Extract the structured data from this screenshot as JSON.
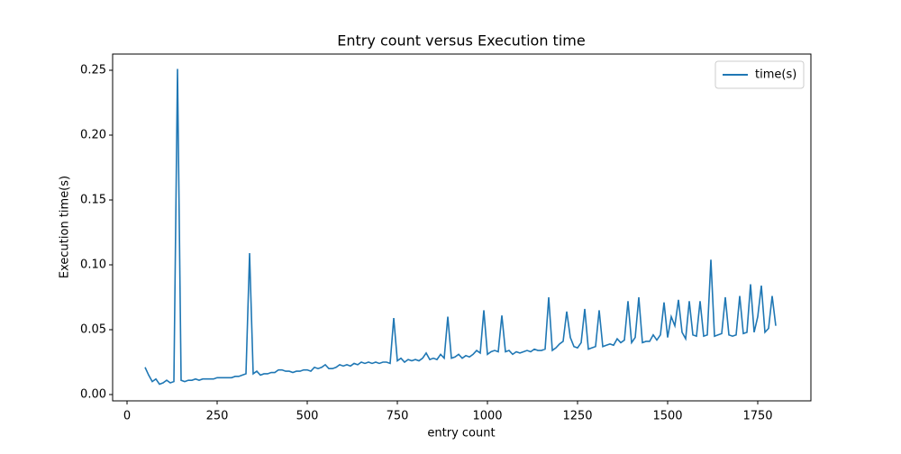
{
  "chart_data": {
    "type": "line",
    "title": "Entry count versus Execution time",
    "xlabel": "entry count",
    "ylabel": "Execution time(s)",
    "x": [
      50,
      60,
      70,
      80,
      90,
      100,
      110,
      120,
      130,
      140,
      150,
      160,
      170,
      180,
      190,
      200,
      210,
      220,
      230,
      240,
      250,
      260,
      270,
      280,
      290,
      300,
      310,
      320,
      330,
      340,
      350,
      360,
      370,
      380,
      390,
      400,
      410,
      420,
      430,
      440,
      450,
      460,
      470,
      480,
      490,
      500,
      510,
      520,
      530,
      540,
      550,
      560,
      570,
      580,
      590,
      600,
      610,
      620,
      630,
      640,
      650,
      660,
      670,
      680,
      690,
      700,
      710,
      720,
      730,
      740,
      750,
      760,
      770,
      780,
      790,
      800,
      810,
      820,
      830,
      840,
      850,
      860,
      870,
      880,
      890,
      900,
      910,
      920,
      930,
      940,
      950,
      960,
      970,
      980,
      990,
      1000,
      1010,
      1020,
      1030,
      1040,
      1050,
      1060,
      1070,
      1080,
      1090,
      1100,
      1110,
      1120,
      1130,
      1140,
      1150,
      1160,
      1170,
      1180,
      1190,
      1200,
      1210,
      1220,
      1230,
      1240,
      1250,
      1260,
      1270,
      1280,
      1290,
      1300,
      1310,
      1320,
      1330,
      1340,
      1350,
      1360,
      1370,
      1380,
      1390,
      1400,
      1410,
      1420,
      1430,
      1440,
      1450,
      1460,
      1470,
      1480,
      1490,
      1500,
      1510,
      1520,
      1530,
      1540,
      1550,
      1560,
      1570,
      1580,
      1590,
      1600,
      1610,
      1620,
      1630,
      1640,
      1650,
      1660,
      1670,
      1680,
      1690,
      1700,
      1710,
      1720,
      1730,
      1740,
      1750,
      1760,
      1770,
      1780,
      1790,
      1800
    ],
    "series": [
      {
        "name": "time(s)",
        "color": "#1f77b4",
        "values": [
          0.021,
          0.015,
          0.01,
          0.012,
          0.008,
          0.009,
          0.011,
          0.009,
          0.01,
          0.251,
          0.011,
          0.01,
          0.011,
          0.011,
          0.012,
          0.011,
          0.012,
          0.012,
          0.012,
          0.012,
          0.013,
          0.013,
          0.013,
          0.013,
          0.013,
          0.014,
          0.014,
          0.015,
          0.016,
          0.109,
          0.016,
          0.018,
          0.015,
          0.016,
          0.016,
          0.017,
          0.017,
          0.019,
          0.019,
          0.018,
          0.018,
          0.017,
          0.018,
          0.018,
          0.019,
          0.019,
          0.018,
          0.021,
          0.02,
          0.021,
          0.023,
          0.02,
          0.02,
          0.021,
          0.023,
          0.022,
          0.023,
          0.022,
          0.024,
          0.023,
          0.025,
          0.024,
          0.025,
          0.024,
          0.025,
          0.024,
          0.025,
          0.025,
          0.024,
          0.059,
          0.026,
          0.028,
          0.025,
          0.027,
          0.026,
          0.027,
          0.026,
          0.028,
          0.032,
          0.027,
          0.028,
          0.027,
          0.031,
          0.028,
          0.06,
          0.028,
          0.029,
          0.031,
          0.028,
          0.03,
          0.029,
          0.031,
          0.034,
          0.032,
          0.065,
          0.031,
          0.033,
          0.034,
          0.033,
          0.061,
          0.033,
          0.034,
          0.031,
          0.033,
          0.032,
          0.033,
          0.034,
          0.033,
          0.035,
          0.034,
          0.034,
          0.035,
          0.075,
          0.034,
          0.036,
          0.039,
          0.041,
          0.064,
          0.044,
          0.037,
          0.036,
          0.04,
          0.066,
          0.035,
          0.036,
          0.037,
          0.065,
          0.037,
          0.038,
          0.039,
          0.038,
          0.043,
          0.04,
          0.042,
          0.072,
          0.04,
          0.044,
          0.075,
          0.04,
          0.041,
          0.041,
          0.046,
          0.042,
          0.046,
          0.071,
          0.044,
          0.06,
          0.053,
          0.073,
          0.048,
          0.043,
          0.072,
          0.046,
          0.045,
          0.072,
          0.045,
          0.046,
          0.104,
          0.045,
          0.046,
          0.047,
          0.075,
          0.046,
          0.045,
          0.046,
          0.076,
          0.047,
          0.048,
          0.085,
          0.048,
          0.06,
          0.084,
          0.048,
          0.051,
          0.076,
          0.053
        ]
      }
    ],
    "xlim": [
      -40,
      1897.5
    ],
    "xticks": [
      0,
      250,
      500,
      750,
      1000,
      1250,
      1500,
      1750
    ],
    "ylim": [
      -0.00486,
      0.2625
    ],
    "yticks": [
      {
        "value": 0,
        "label": "0.00"
      },
      0.05,
      {
        "value": 0.1,
        "label": "0.10"
      },
      0.15,
      {
        "value": 0.2,
        "label": "0.20"
      },
      0.25
    ],
    "legend": "upper right"
  }
}
